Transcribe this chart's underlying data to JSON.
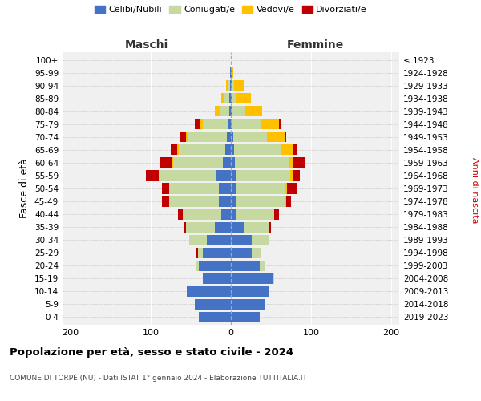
{
  "age_groups": [
    "0-4",
    "5-9",
    "10-14",
    "15-19",
    "20-24",
    "25-29",
    "30-34",
    "35-39",
    "40-44",
    "45-49",
    "50-54",
    "55-59",
    "60-64",
    "65-69",
    "70-74",
    "75-79",
    "80-84",
    "85-89",
    "90-94",
    "95-99",
    "100+"
  ],
  "birth_years": [
    "2019-2023",
    "2014-2018",
    "2009-2013",
    "2004-2008",
    "1999-2003",
    "1994-1998",
    "1989-1993",
    "1984-1988",
    "1979-1983",
    "1974-1978",
    "1969-1973",
    "1964-1968",
    "1959-1963",
    "1954-1958",
    "1949-1953",
    "1944-1948",
    "1939-1943",
    "1934-1938",
    "1929-1933",
    "1924-1928",
    "≤ 1923"
  ],
  "colors": {
    "celibi": "#4472c4",
    "coniugati": "#c5d9a0",
    "vedovi": "#ffc000",
    "divorziati": "#c00000"
  },
  "males": {
    "celibi": [
      40,
      45,
      55,
      35,
      40,
      35,
      30,
      20,
      12,
      15,
      15,
      18,
      10,
      7,
      5,
      3,
      2,
      2,
      1,
      1,
      0
    ],
    "coniugati": [
      0,
      0,
      0,
      0,
      3,
      6,
      22,
      36,
      48,
      62,
      62,
      72,
      62,
      58,
      48,
      32,
      12,
      6,
      3,
      0,
      0
    ],
    "vedovi": [
      0,
      0,
      0,
      0,
      0,
      0,
      0,
      0,
      0,
      0,
      0,
      0,
      2,
      2,
      3,
      4,
      6,
      4,
      2,
      0,
      0
    ],
    "divorziati": [
      0,
      0,
      0,
      0,
      0,
      2,
      0,
      2,
      6,
      9,
      9,
      16,
      14,
      8,
      8,
      6,
      0,
      0,
      0,
      0,
      0
    ]
  },
  "females": {
    "nubili": [
      36,
      42,
      48,
      52,
      36,
      26,
      26,
      16,
      6,
      6,
      6,
      6,
      5,
      4,
      3,
      2,
      1,
      1,
      1,
      1,
      0
    ],
    "coniugate": [
      0,
      0,
      0,
      2,
      6,
      12,
      22,
      32,
      48,
      62,
      62,
      68,
      68,
      58,
      42,
      36,
      16,
      6,
      3,
      0,
      0
    ],
    "vedove": [
      0,
      0,
      0,
      0,
      0,
      0,
      0,
      0,
      0,
      1,
      2,
      3,
      5,
      16,
      22,
      22,
      22,
      18,
      12,
      2,
      0
    ],
    "divorziate": [
      0,
      0,
      0,
      0,
      0,
      0,
      0,
      2,
      6,
      6,
      12,
      9,
      14,
      5,
      2,
      2,
      0,
      0,
      0,
      0,
      0
    ]
  },
  "xlim": [
    -210,
    210
  ],
  "xticks": [
    -200,
    -100,
    0,
    100,
    200
  ],
  "xticklabels": [
    "200",
    "100",
    "0",
    "100",
    "200"
  ],
  "title": "Popolazione per età, sesso e stato civile - 2024",
  "subtitle": "COMUNE DI TORPÈ (NU) - Dati ISTAT 1° gennaio 2024 - Elaborazione TUTTITALIA.IT",
  "ylabel_left": "Fasce di età",
  "ylabel_right": "Anni di nascita",
  "label_maschi": "Maschi",
  "label_femmine": "Femmine",
  "bg_color": "#f0f0f0",
  "bar_height": 0.82,
  "legend_labels": [
    "Celibi/Nubili",
    "Coniugati/e",
    "Vedovi/e",
    "Divorziati/e"
  ]
}
